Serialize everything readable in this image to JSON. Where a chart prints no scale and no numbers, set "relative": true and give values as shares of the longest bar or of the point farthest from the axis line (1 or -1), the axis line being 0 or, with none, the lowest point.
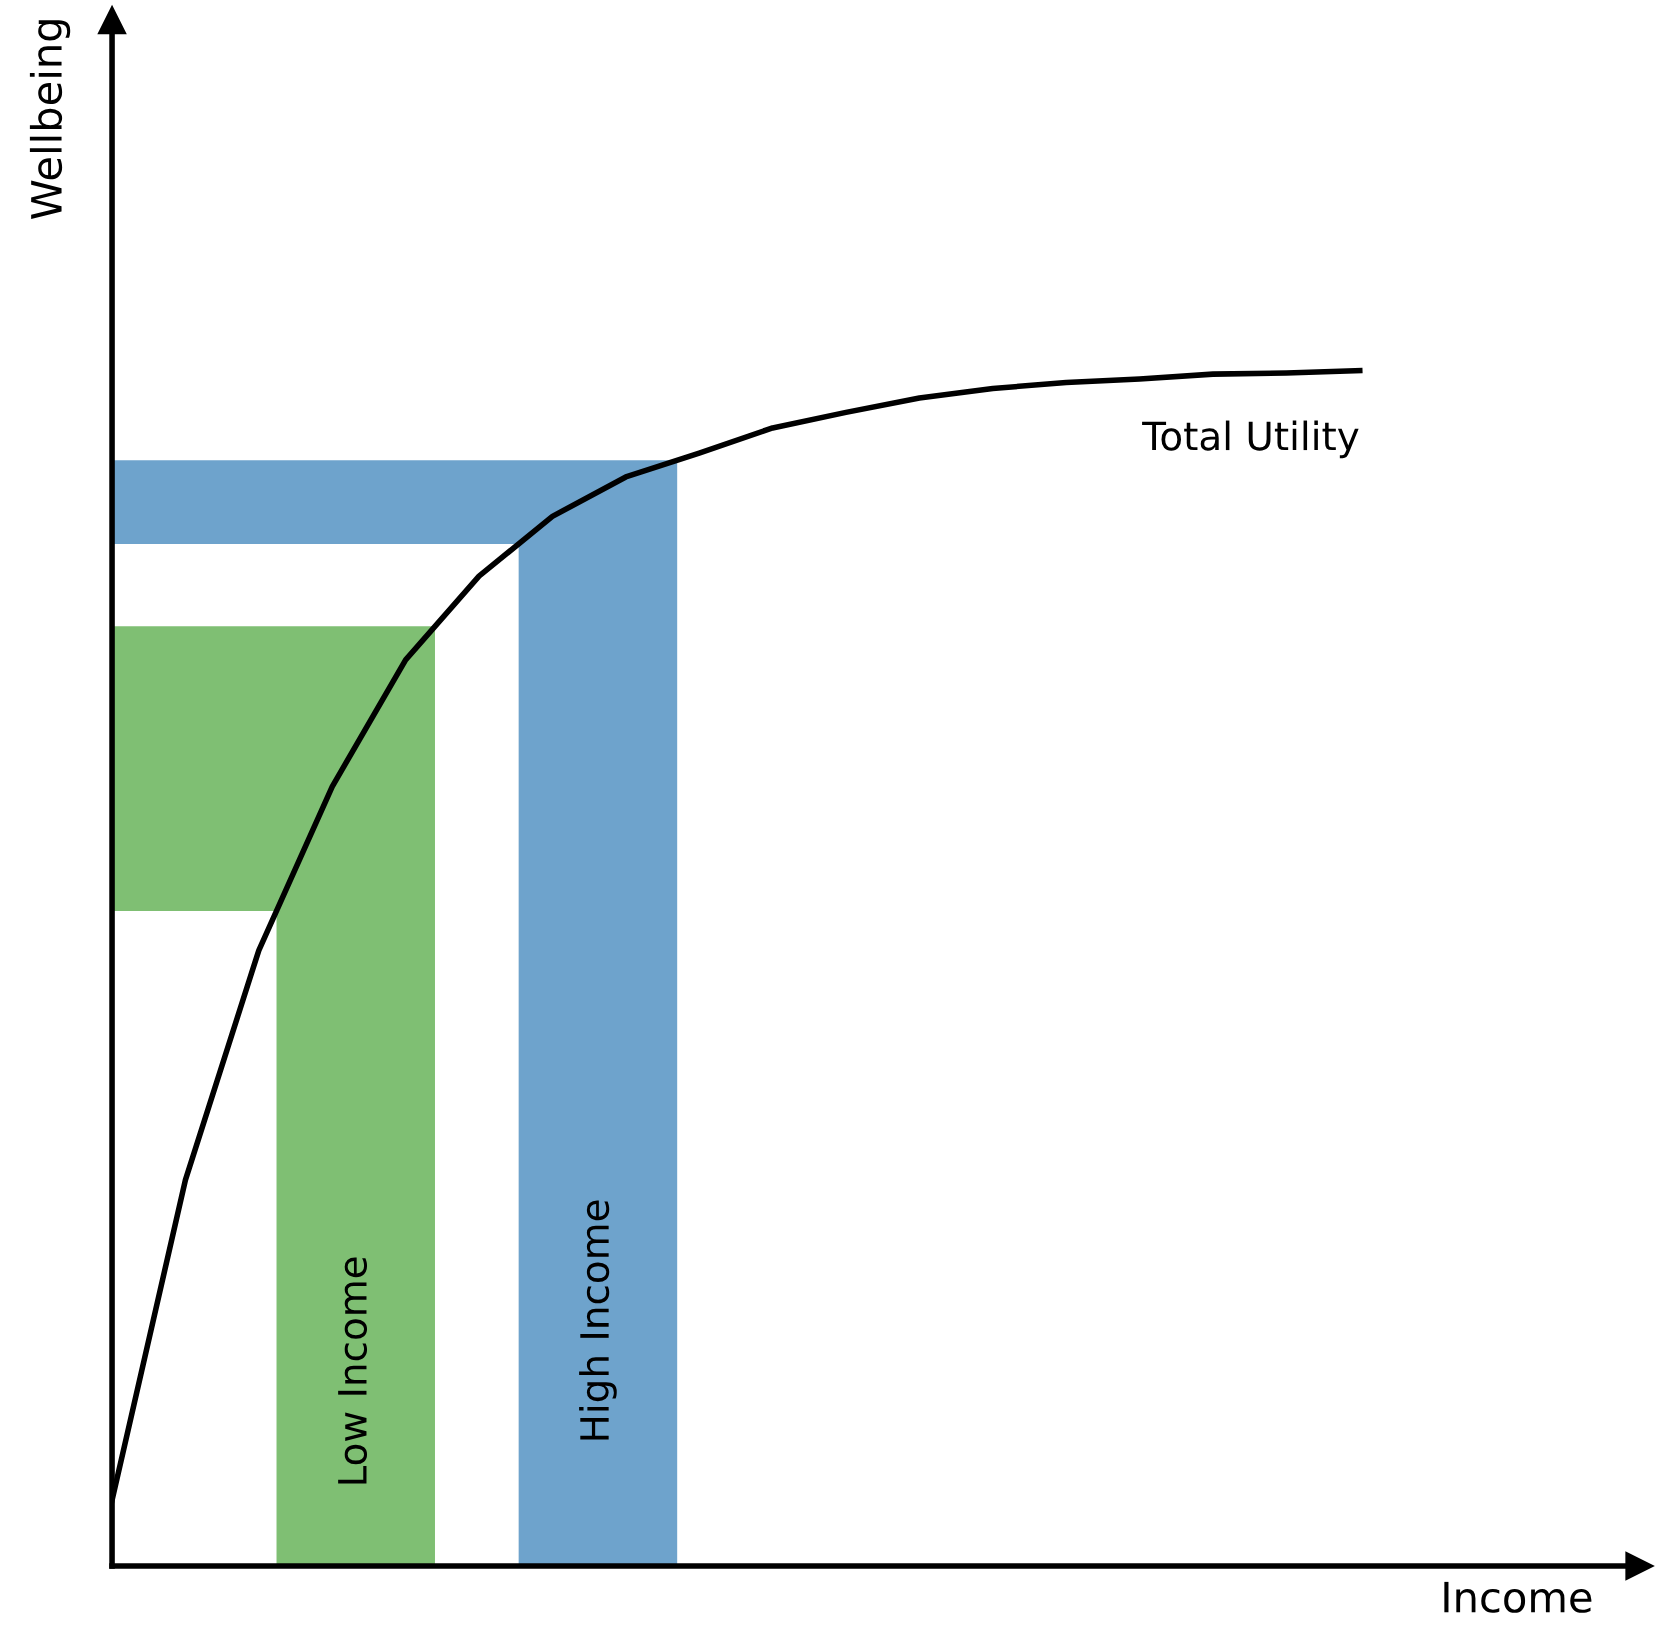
{
  "chart_data": {
    "type": "line",
    "relative": true,
    "xlabel": "Income",
    "ylabel": "Wellbeing",
    "categories": [
      null,
      null,
      null,
      null,
      null,
      null,
      null,
      null,
      null,
      null,
      null,
      null,
      null,
      null,
      null,
      null,
      null,
      null
    ],
    "series": [
      {
        "name": "Total Utility",
        "color": "#000000",
        "values": [
          0.055,
          0.323,
          0.515,
          0.652,
          0.758,
          0.828,
          0.878,
          0.911,
          0.931,
          0.952,
          0.965,
          0.977,
          0.985,
          0.99,
          0.993,
          0.997,
          0.998,
          1.0
        ]
      }
    ],
    "bands": [
      {
        "axis": "y",
        "from": 0.548,
        "to": 0.786,
        "color": "#7fbf73"
      },
      {
        "axis": "y",
        "from": 0.855,
        "to": 0.925,
        "color": "#6ea3cc"
      }
    ],
    "annotations": [
      "Low Income",
      "High Income"
    ],
    "marker": "none",
    "line_style": "solid"
  }
}
